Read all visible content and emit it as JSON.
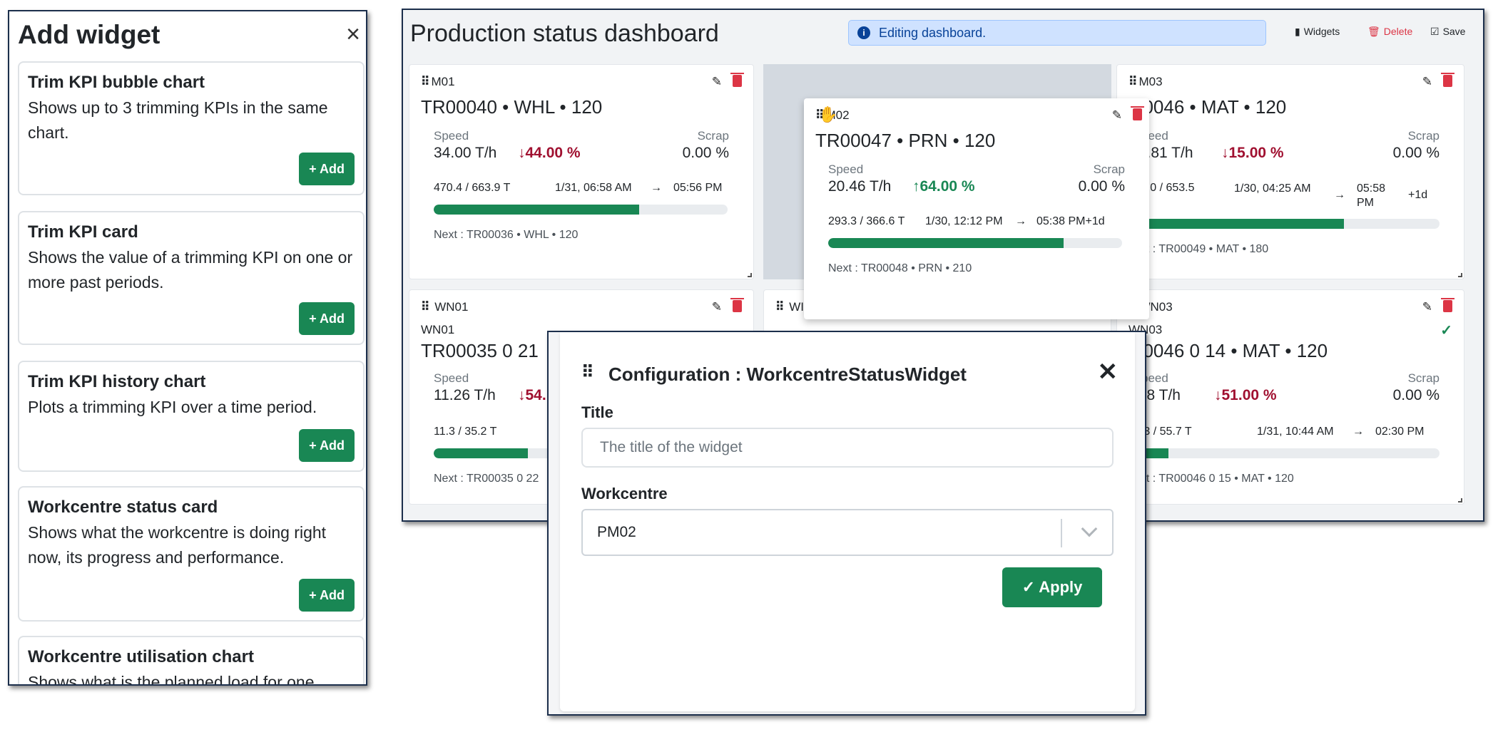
{
  "add_panel": {
    "title": "Add widget",
    "close": "×",
    "widgets": [
      {
        "title": "Trim KPI bubble chart",
        "desc": "Shows up to 3 trimming KPIs in the same chart.",
        "button": "+ Add"
      },
      {
        "title": "Trim KPI card",
        "desc": "Shows the value of a trimming KPI on one or more past periods.",
        "button": "+ Add"
      },
      {
        "title": "Trim KPI history chart",
        "desc": "Plots a trimming KPI over a time period.",
        "button": "+ Add"
      },
      {
        "title": "Workcentre status card",
        "desc": "Shows what the workcentre is doing right now, its progress and performance.",
        "button": "+ Add"
      },
      {
        "title": "Workcentre utilisation chart",
        "desc": "Shows what is the planned load for one"
      }
    ]
  },
  "dashboard": {
    "title": "Production status dashboard",
    "alert": "Editing dashboard.",
    "toolbar": {
      "widgets": "Widgets",
      "delete": "Delete",
      "save": "Save"
    },
    "tiles": [
      {
        "name": "M01",
        "job": "TR00040 • WHL • 120",
        "speed_label": "Speed",
        "speed": "34.00 T/h",
        "delta": "↓44.00 %",
        "scrap_label": "Scrap",
        "scrap": "0.00 %",
        "weight": "470.4 / 663.9 T",
        "start": "1/31, 06:58 AM",
        "arrow": "→",
        "end": "05:56 PM",
        "progress": 0.7,
        "next": "Next : TR00036 • WHL • 120"
      },
      {
        "name": "M02",
        "job": "TR00047 • PRN • 120",
        "speed_label": "Speed",
        "speed": "20.46 T/h",
        "delta": "↑64.00 %",
        "scrap_label": "Scrap",
        "scrap": "0.00 %",
        "weight": "293.3 / 366.6 T",
        "start": "1/30, 12:12 PM",
        "arrow": "→",
        "end": "05:38 PM+1d",
        "progress": 0.8,
        "next": "Next : TR00048 • PRN • 210"
      },
      {
        "name": "M03",
        "job": "00046 • MAT • 120",
        "speed_label": "peed",
        "speed": ".4.81 T/h",
        "delta": "↓15.00 %",
        "scrap_label": "Scrap",
        "scrap": "0.00 %",
        "weight": "44.0 / 653.5",
        "start": "1/30, 04:25 AM",
        "arrow": "→",
        "end": "05:58 PM",
        "end_extra": "+1d",
        "progress": 0.69,
        "next": "ext : TR00049 • MAT • 180"
      },
      {
        "name": "WN01",
        "sub": "WN01",
        "job": "TR00035 0 21",
        "speed_label": "Speed",
        "speed": "11.26 T/h",
        "delta": "↓54.",
        "weight": "11.3 / 35.2 T",
        "progress": 0.32,
        "next": "Next : TR00035 0 22"
      },
      {
        "name": "WI"
      },
      {
        "name": "WN03",
        "sub": "WN03",
        "job": "00046 0 14 • MAT • 120",
        "speed_label": "peed",
        "speed": ".28 T/h",
        "delta": "↓51.00 %",
        "scrap_label": "Scrap",
        "scrap": "0.00 %",
        "weight": "1.3 / 55.7 T",
        "start": "1/31, 10:44 AM",
        "arrow": "→",
        "end": "02:30 PM",
        "progress": 0.12,
        "next": "ext : TR00046 0 15 • MAT • 120"
      }
    ]
  },
  "dialog": {
    "title": "Configuration : WorkcentreStatusWidget",
    "close": "✕",
    "title_label": "Title",
    "title_placeholder": "The title of the widget",
    "workcentre_label": "Workcentre",
    "workcentre_value": "PM02",
    "apply": "Apply"
  },
  "colors": {
    "accent": "#198754",
    "danger": "#dc3545",
    "alert_bg": "#cfe2ff",
    "down": "#a01030"
  }
}
